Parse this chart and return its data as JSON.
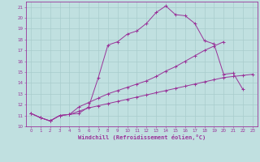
{
  "xlabel": "Windchill (Refroidissement éolien,°C)",
  "background_color": "#c0e0e0",
  "grid_color": "#a8cccc",
  "line_color": "#993399",
  "xlim": [
    -0.5,
    23.5
  ],
  "ylim": [
    10,
    21.5
  ],
  "xticks": [
    0,
    1,
    2,
    3,
    4,
    5,
    6,
    7,
    8,
    9,
    10,
    11,
    12,
    13,
    14,
    15,
    16,
    17,
    18,
    19,
    20,
    21,
    22,
    23
  ],
  "yticks": [
    10,
    11,
    12,
    13,
    14,
    15,
    16,
    17,
    18,
    19,
    20,
    21
  ],
  "line1_x": [
    0,
    1,
    2,
    3,
    4,
    5,
    6,
    7,
    8,
    9,
    10,
    11,
    12,
    13,
    14,
    15,
    16,
    17,
    18,
    19,
    20,
    21,
    22
  ],
  "line1_y": [
    11.2,
    10.8,
    10.5,
    11.0,
    11.1,
    11.2,
    11.8,
    14.5,
    17.5,
    17.8,
    18.5,
    18.8,
    19.5,
    20.5,
    21.1,
    20.3,
    20.2,
    19.5,
    17.9,
    17.6,
    14.8,
    14.9,
    13.4
  ],
  "line2_x": [
    0,
    1,
    2,
    3,
    4,
    5,
    6,
    7,
    8,
    9,
    10,
    11,
    12,
    13,
    14,
    15,
    16,
    17,
    18,
    19,
    20
  ],
  "line2_y": [
    11.2,
    10.8,
    10.5,
    11.0,
    11.1,
    11.8,
    12.2,
    12.6,
    13.0,
    13.3,
    13.6,
    13.9,
    14.2,
    14.6,
    15.1,
    15.5,
    16.0,
    16.5,
    17.0,
    17.4,
    17.8
  ],
  "line3_x": [
    0,
    1,
    2,
    3,
    4,
    5,
    6,
    7,
    8,
    9,
    10,
    11,
    12,
    13,
    14,
    15,
    16,
    17,
    18,
    19,
    20,
    21,
    22,
    23
  ],
  "line3_y": [
    11.2,
    10.8,
    10.5,
    11.0,
    11.1,
    11.4,
    11.7,
    11.9,
    12.1,
    12.3,
    12.5,
    12.7,
    12.9,
    13.1,
    13.3,
    13.5,
    13.7,
    13.9,
    14.1,
    14.3,
    14.5,
    14.6,
    14.7,
    14.8
  ]
}
